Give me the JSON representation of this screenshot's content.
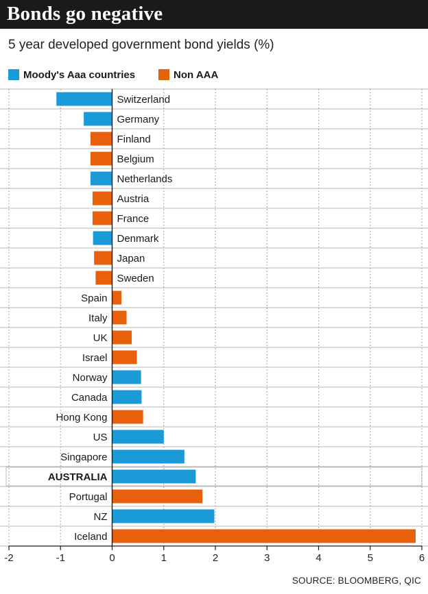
{
  "title": "Bonds go negative",
  "subtitle": "5 year developed government bond yields (%)",
  "source": "SOURCE: BLOOMBERG, QIC",
  "colors": {
    "aaa": "#1a9ad6",
    "non_aaa": "#e8600c",
    "grid": "#9a9a9a",
    "header": "#1a1a1a",
    "highlight_row": "#ffffff"
  },
  "chart_data": {
    "type": "bar",
    "orientation": "horizontal",
    "title": "5 year developed government bond yields (%)",
    "xlim": [
      -2,
      6
    ],
    "xticks": [
      -2,
      -1,
      0,
      1,
      2,
      3,
      4,
      5,
      6
    ],
    "grid": true,
    "legend_position": "top-left",
    "legend": [
      {
        "name": "Moody's Aaa countries",
        "color_key": "aaa"
      },
      {
        "name": "Non AAA",
        "color_key": "non_aaa"
      }
    ],
    "highlight": "AUSTRALIA",
    "categories": [
      {
        "name": "Switzerland",
        "value": -1.08,
        "group": "aaa"
      },
      {
        "name": "Germany",
        "value": -0.55,
        "group": "aaa"
      },
      {
        "name": "Finland",
        "value": -0.42,
        "group": "non_aaa"
      },
      {
        "name": "Belgium",
        "value": -0.42,
        "group": "non_aaa"
      },
      {
        "name": "Netherlands",
        "value": -0.42,
        "group": "aaa"
      },
      {
        "name": "Austria",
        "value": -0.38,
        "group": "non_aaa"
      },
      {
        "name": "France",
        "value": -0.38,
        "group": "non_aaa"
      },
      {
        "name": "Denmark",
        "value": -0.37,
        "group": "aaa"
      },
      {
        "name": "Japan",
        "value": -0.35,
        "group": "non_aaa"
      },
      {
        "name": "Sweden",
        "value": -0.32,
        "group": "non_aaa"
      },
      {
        "name": "Spain",
        "value": 0.18,
        "group": "non_aaa"
      },
      {
        "name": "Italy",
        "value": 0.28,
        "group": "non_aaa"
      },
      {
        "name": "UK",
        "value": 0.38,
        "group": "non_aaa"
      },
      {
        "name": "Israel",
        "value": 0.48,
        "group": "non_aaa"
      },
      {
        "name": "Norway",
        "value": 0.56,
        "group": "aaa"
      },
      {
        "name": "Canada",
        "value": 0.57,
        "group": "aaa"
      },
      {
        "name": "Hong Kong",
        "value": 0.6,
        "group": "non_aaa"
      },
      {
        "name": "US",
        "value": 1.0,
        "group": "aaa"
      },
      {
        "name": "Singapore",
        "value": 1.4,
        "group": "aaa"
      },
      {
        "name": "AUSTRALIA",
        "value": 1.62,
        "group": "aaa"
      },
      {
        "name": "Portugal",
        "value": 1.75,
        "group": "non_aaa"
      },
      {
        "name": "NZ",
        "value": 1.98,
        "group": "aaa"
      },
      {
        "name": "Iceland",
        "value": 5.88,
        "group": "non_aaa"
      }
    ]
  }
}
